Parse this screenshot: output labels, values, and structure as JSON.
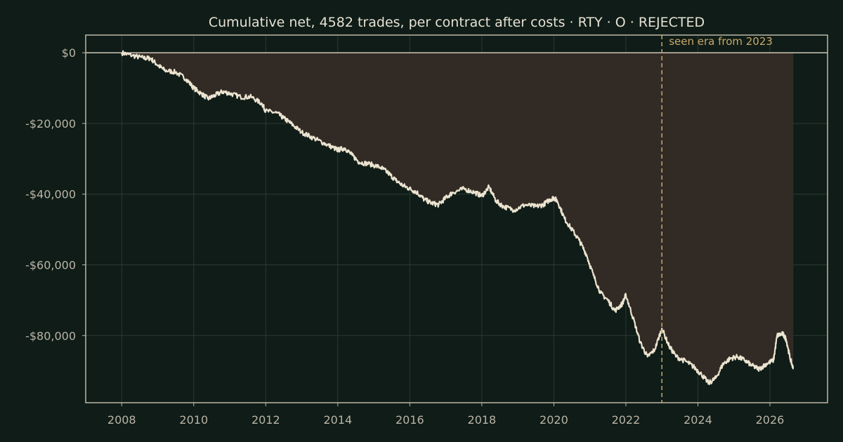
{
  "chart_data": {
    "type": "line",
    "title": "Cumulative net, 4582 trades, per contract after costs  ·  RTY · O · REJECTED",
    "xlabel": "",
    "ylabel": "",
    "x_ticks": [
      "2008",
      "2010",
      "2012",
      "2014",
      "2016",
      "2018",
      "2020",
      "2022",
      "2024",
      "2026"
    ],
    "x_tick_values": [
      2008,
      2010,
      2012,
      2014,
      2016,
      2018,
      2020,
      2022,
      2024,
      2026
    ],
    "y_ticks": [
      "$0",
      "-$20,000",
      "-$40,000",
      "-$60,000",
      "-$80,000"
    ],
    "y_tick_values": [
      0,
      -20000,
      -40000,
      -60000,
      -80000
    ],
    "xlim": [
      2007.0,
      2027.6
    ],
    "ylim": [
      -99000,
      5000
    ],
    "grid": true,
    "legend": "none",
    "annotations": [
      {
        "text": "seen era from 2023",
        "x": 2023.0,
        "style": "dashed-vertical"
      }
    ],
    "series": [
      {
        "x": [
          2008.0,
          2008.3,
          2008.6,
          2008.8,
          2009.0,
          2009.2,
          2009.5,
          2009.8,
          2010.0,
          2010.2,
          2010.4,
          2010.6,
          2010.8,
          2011.0,
          2011.3,
          2011.6,
          2011.9,
          2012.0,
          2012.3,
          2012.5,
          2012.7,
          2013.0,
          2013.3,
          2013.6,
          2013.9,
          2014.0,
          2014.2,
          2014.4,
          2014.6,
          2014.9,
          2015.2,
          2015.4,
          2015.6,
          2015.8,
          2016.0,
          2016.2,
          2016.4,
          2016.6,
          2016.8,
          2017.0,
          2017.2,
          2017.5,
          2017.8,
          2018.0,
          2018.2,
          2018.4,
          2018.6,
          2018.9,
          2019.2,
          2019.5,
          2019.7,
          2019.9,
          2020.0,
          2020.1,
          2020.3,
          2020.5,
          2020.7,
          2020.9,
          2021.1,
          2021.3,
          2021.5,
          2021.7,
          2021.9,
          2022.0,
          2022.2,
          2022.4,
          2022.6,
          2022.8,
          2023.0,
          2023.2,
          2023.4,
          2023.7,
          2023.9,
          2024.1,
          2024.3,
          2024.5,
          2024.7,
          2024.9,
          2025.1,
          2025.3,
          2025.5,
          2025.7,
          2025.9,
          2026.1,
          2026.2,
          2026.35,
          2026.45,
          2026.55,
          2026.65
        ],
        "values": [
          0,
          -800,
          -1500,
          -1600,
          -3500,
          -5000,
          -5500,
          -7500,
          -10000,
          -11500,
          -13000,
          -12000,
          -11000,
          -11500,
          -12500,
          -12500,
          -14500,
          -16500,
          -17000,
          -18500,
          -20000,
          -22500,
          -24000,
          -25500,
          -27000,
          -27500,
          -27000,
          -29000,
          -31000,
          -31500,
          -32500,
          -34000,
          -36000,
          -37500,
          -38500,
          -39500,
          -41500,
          -42500,
          -43000,
          -41000,
          -39500,
          -38500,
          -39500,
          -40500,
          -38000,
          -42000,
          -43500,
          -44500,
          -43000,
          -43500,
          -43000,
          -41500,
          -41000,
          -42000,
          -47000,
          -50000,
          -53000,
          -57000,
          -63000,
          -68000,
          -70000,
          -73000,
          -71000,
          -68500,
          -75000,
          -82000,
          -86000,
          -84000,
          -78000,
          -83000,
          -86000,
          -87500,
          -89000,
          -91000,
          -93500,
          -92000,
          -88000,
          -86500,
          -86000,
          -87000,
          -88500,
          -89500,
          -88000,
          -87000,
          -80000,
          -79500,
          -81000,
          -86000,
          -89500
        ]
      }
    ]
  }
}
